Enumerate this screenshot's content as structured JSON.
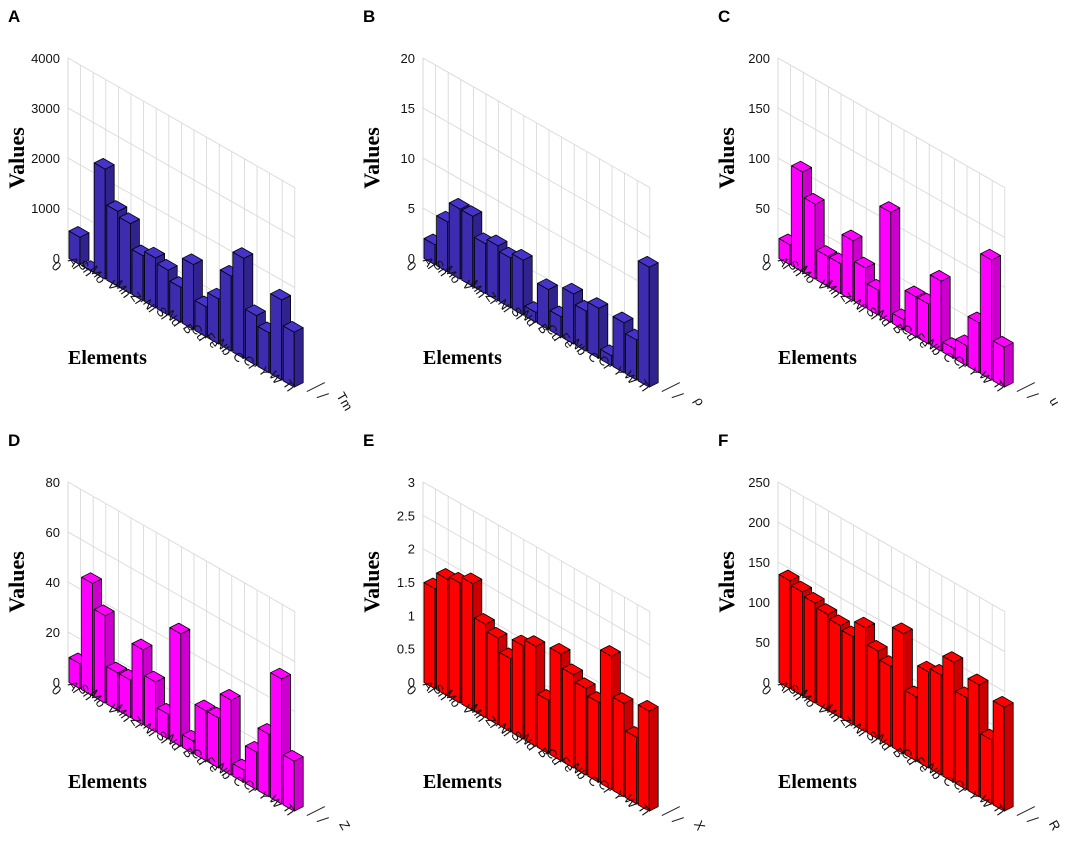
{
  "chart_data": [
    {
      "panel": "A",
      "type": "bar",
      "color": "#3d2cb0",
      "categories": [
        "Al",
        "Sn",
        "Mo",
        "V",
        "Mn",
        "Zr",
        "Ni",
        "Si",
        "Nd",
        "B",
        "Cu",
        "Fe",
        "Nb",
        "C",
        "Cr",
        "Y",
        "W",
        "Ti"
      ],
      "values": [
        550,
        0,
        2200,
        1500,
        1400,
        900,
        1000,
        900,
        700,
        1300,
        600,
        900,
        1500,
        2000,
        1000,
        800,
        1600,
        1100
      ],
      "ylim": [
        0,
        4000
      ],
      "yticks": [
        "4000",
        "3000",
        "2000",
        "1000",
        "0"
      ],
      "ylabel": "Values",
      "xlabel": "Elements",
      "zlabel": "Tm",
      "origin_label": "0"
    },
    {
      "panel": "B",
      "type": "bar",
      "color": "#3d2cb0",
      "categories": [
        "Al",
        "Sn",
        "Mo",
        "V",
        "Mn",
        "Zr",
        "Ni",
        "Si",
        "Nd",
        "B",
        "Cu",
        "Fe",
        "Nb",
        "C",
        "Cr",
        "Y",
        "W",
        "Ti"
      ],
      "values": [
        2,
        5,
        7,
        7,
        5,
        5.5,
        5,
        5.5,
        1,
        4,
        2,
        5,
        4,
        5,
        1,
        5,
        4,
        12
      ],
      "ylim": [
        0,
        20
      ],
      "yticks": [
        "20",
        "15",
        "10",
        "5",
        "0"
      ],
      "ylabel": "Values",
      "xlabel": "Elements",
      "zlabel": "ρ",
      "origin_label": "0"
    },
    {
      "panel": "C",
      "type": "bar",
      "color": "#ff00ff",
      "categories": [
        "Al",
        "Sn",
        "Mo",
        "V",
        "Mn",
        "Zr",
        "Ni",
        "Si",
        "Nd",
        "B",
        "Cu",
        "Fe",
        "Nb",
        "C",
        "Cr",
        "Y",
        "W",
        "Ti"
      ],
      "values": [
        20,
        100,
        75,
        30,
        30,
        60,
        40,
        25,
        110,
        10,
        40,
        40,
        70,
        10,
        20,
        50,
        120,
        40
      ],
      "ylim": [
        0,
        200
      ],
      "yticks": [
        "200",
        "150",
        "100",
        "50",
        "0"
      ],
      "ylabel": "Values",
      "xlabel": "Elements",
      "zlabel": "u",
      "origin_label": "0"
    },
    {
      "panel": "D",
      "type": "bar",
      "color": "#ff00ff",
      "categories": [
        "Al",
        "Sn",
        "Mo",
        "V",
        "Mn",
        "Zr",
        "Ni",
        "Si",
        "Nd",
        "B",
        "Cu",
        "Fe",
        "Nb",
        "C",
        "Cr",
        "Y",
        "W",
        "Ti"
      ],
      "values": [
        10,
        45,
        35,
        15,
        15,
        30,
        20,
        10,
        45,
        5,
        20,
        20,
        30,
        5,
        15,
        25,
        50,
        20
      ],
      "ylim": [
        0,
        80
      ],
      "yticks": [
        "80",
        "60",
        "40",
        "20",
        "0"
      ],
      "ylabel": "Values",
      "xlabel": "Elements",
      "zlabel": "Z",
      "origin_label": "0"
    },
    {
      "panel": "E",
      "type": "bar",
      "color": "#ff0000",
      "categories": [
        "Al",
        "Sn",
        "Mo",
        "V",
        "Mn",
        "Zr",
        "Ni",
        "Si",
        "Nd",
        "B",
        "Cu",
        "Fe",
        "Nb",
        "C",
        "Cr",
        "Y",
        "W",
        "Ti"
      ],
      "values": [
        1.5,
        1.75,
        1.8,
        1.9,
        1.4,
        1.3,
        1.1,
        1.4,
        1.5,
        0.8,
        1.6,
        1.4,
        1.3,
        1.2,
        2.0,
        1.4,
        1.0,
        1.5
      ],
      "ylim": [
        0,
        3
      ],
      "yticks": [
        "3",
        "2.5",
        "2",
        "1.5",
        "1",
        "0.5",
        "0"
      ],
      "ylabel": "Values",
      "xlabel": "Elements",
      "zlabel": "X",
      "origin_label": "0"
    },
    {
      "panel": "F",
      "type": "bar",
      "color": "#ff0000",
      "categories": [
        "Al",
        "Sn",
        "Mo",
        "V",
        "Mn",
        "Zr",
        "Ni",
        "Si",
        "Nd",
        "B",
        "Cu",
        "Fe",
        "Nb",
        "C",
        "Cr",
        "Y",
        "W",
        "Ti"
      ],
      "values": [
        135,
        130,
        125,
        120,
        115,
        110,
        130,
        110,
        100,
        150,
        80,
        120,
        125,
        150,
        115,
        140,
        80,
        130
      ],
      "ylim": [
        0,
        250
      ],
      "yticks": [
        "250",
        "200",
        "150",
        "100",
        "50",
        "0"
      ],
      "ylabel": "Values",
      "xlabel": "Elements",
      "zlabel": "R",
      "origin_label": "0"
    }
  ]
}
